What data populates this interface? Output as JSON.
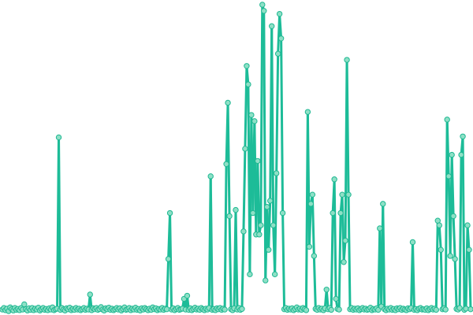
{
  "chart_data": {
    "type": "line",
    "title": "",
    "xlabel": "",
    "ylabel": "",
    "markers": true,
    "grid": false,
    "axes_visible": false,
    "legend": "none",
    "ylim": [
      0,
      100
    ],
    "colors": {
      "line": "#1dbc98",
      "marker_fill": "#8ee0c6",
      "marker_stroke": "#1fb892"
    },
    "series": [
      {
        "values": [
          0.5,
          1,
          0.3,
          0.8,
          0,
          1.2,
          0.6,
          0.2,
          1,
          0.4,
          0.7,
          0.3,
          1,
          0.5,
          2.2,
          0.6,
          0.2,
          0.9,
          0.4,
          1,
          0.3,
          0.8,
          0.5,
          1.1,
          0.2,
          0.6,
          1,
          0.4,
          0.7,
          0.3,
          0.9,
          0.5,
          1.2,
          0.3,
          0.6,
          0.8,
          56.7,
          0.4,
          1,
          0.5,
          0.2,
          0.9,
          0.6,
          1.1,
          0.3,
          0.7,
          0.4,
          1,
          0.5,
          0.8,
          0.3,
          0.6,
          1,
          0.4,
          0.8,
          0.5,
          5.4,
          0.3,
          0.9,
          0.6,
          1,
          0.4,
          0.7,
          1.3,
          0.5,
          0.2,
          0.9,
          0.6,
          1.1,
          0.4,
          0.8,
          0.3,
          0.6,
          1,
          0.5,
          0.9,
          0.2,
          0.7,
          1.2,
          0.4,
          0.6,
          1,
          0.3,
          0.8,
          0.5,
          1.1,
          0.4,
          0.7,
          0.2,
          0.9,
          0.5,
          1,
          0.6,
          0.3,
          0.8,
          0.4,
          1.2,
          0.6,
          0.9,
          0.3,
          0.7,
          0.5,
          1,
          0.4,
          0.8,
          0.6,
          17,
          32,
          0.5,
          0.9,
          0.3,
          0.7,
          1,
          0.4,
          0.6,
          0.8,
          4,
          0.5,
          5,
          0.4,
          0.9,
          0.3,
          0.7,
          1.1,
          0.5,
          0.8,
          0.4,
          1,
          0.6,
          0.3,
          0.8,
          0.5,
          1,
          44,
          0.4,
          0.7,
          0.3,
          0.9,
          0.6,
          1,
          0.4,
          0.8,
          0.5,
          48,
          68,
          31,
          0.6,
          0.3,
          0.9,
          33,
          0.5,
          1,
          0.4,
          0.7,
          26,
          53,
          80,
          74,
          12,
          64,
          32,
          62,
          25,
          49,
          25,
          28,
          100,
          98,
          10,
          34,
          20,
          36,
          93,
          28,
          12,
          45,
          84,
          97,
          89,
          32,
          0.6,
          1,
          0.4,
          0.8,
          0.5,
          0.9,
          0.3,
          0.7,
          1.2,
          0.5,
          0.8,
          0.4,
          1,
          0.6,
          0.3,
          65,
          21,
          35,
          38,
          18,
          0.7,
          0.4,
          1,
          0.5,
          0.8,
          0.3,
          0.9,
          7,
          0.6,
          1,
          0.4,
          32,
          43,
          4,
          0.7,
          0.5,
          32,
          38,
          16,
          23,
          82,
          38,
          0.6,
          1,
          0.4,
          0.8,
          0.5,
          0.9,
          0.3,
          0.7,
          1,
          0.5,
          0.8,
          0.4,
          0.6,
          1.1,
          0.3,
          0.7,
          0.5,
          0.9,
          0.4,
          27,
          1.5,
          35,
          0.6,
          0.3,
          0.8,
          0.5,
          1,
          0.4,
          0.7,
          0.3,
          0.9,
          0.6,
          1,
          0.4,
          0.8,
          0.5,
          0.3,
          0.9,
          0.6,
          1,
          22.5,
          0.4,
          0.7,
          0.3,
          0.8,
          1,
          0.5,
          0.6,
          0.4,
          0.9,
          0.3,
          0.7,
          1,
          0.5,
          0.8,
          0.4,
          29.5,
          28,
          20,
          0.6,
          0.9,
          0.5,
          62.5,
          44,
          18,
          51,
          31,
          17,
          0.7,
          0.5,
          1,
          51,
          57,
          0.4,
          0.8,
          28,
          20,
          0.6
        ]
      }
    ]
  }
}
